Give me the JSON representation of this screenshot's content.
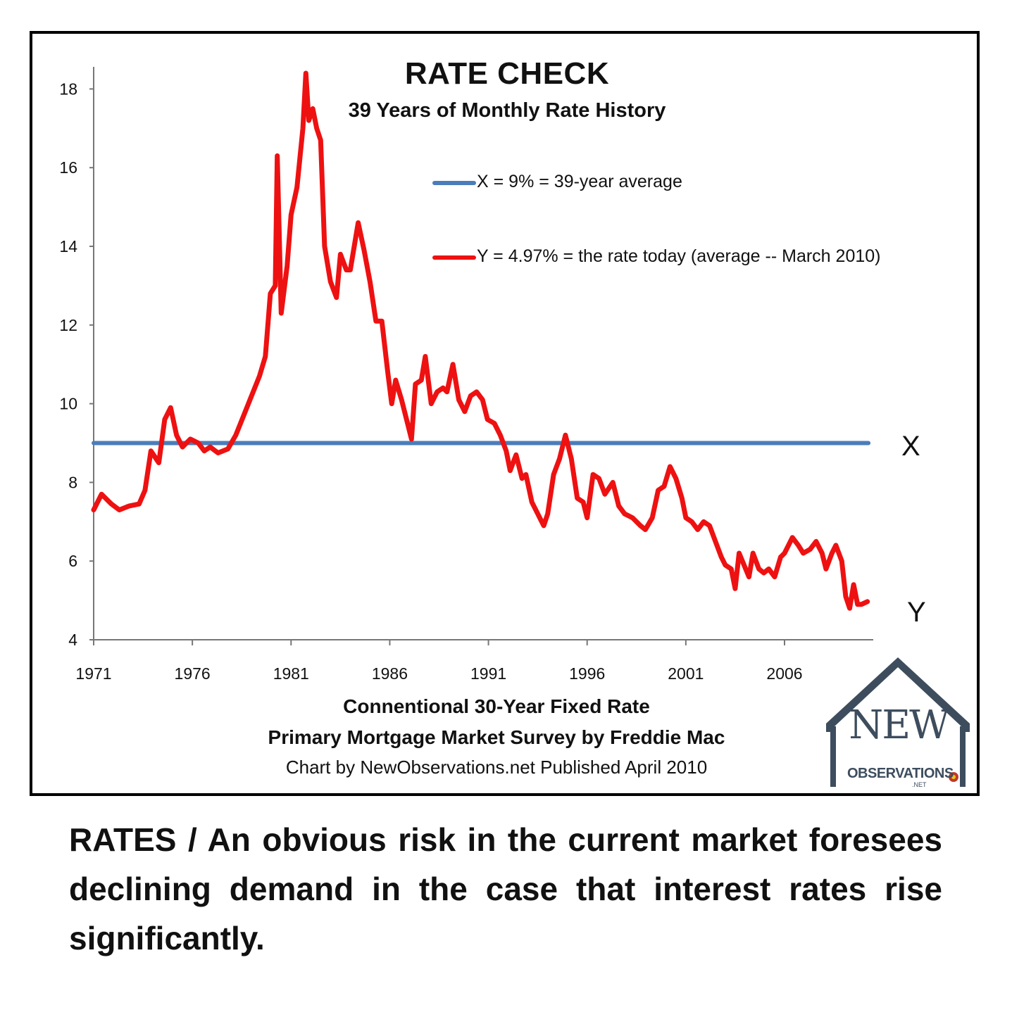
{
  "chart_data": {
    "type": "line",
    "title": "RATE CHECK",
    "subtitle": "39 Years of Monthly Rate History",
    "xlabel": "Connentional 30-Year Fixed Rate",
    "ylabel": "",
    "x_ticks": [
      "1971",
      "1976",
      "1981",
      "1986",
      "1991",
      "1996",
      "2001",
      "2006"
    ],
    "y_ticks": [
      "4",
      "6",
      "8",
      "10",
      "12",
      "14",
      "16",
      "18"
    ],
    "xlim": [
      1971,
      2010.5
    ],
    "ylim": [
      4,
      19
    ],
    "grid": false,
    "legend_position": "top-center",
    "series": [
      {
        "name": "X = 9% = 39-year average",
        "color": "#4a7dba",
        "points": [
          [
            1971,
            9
          ],
          [
            2010.25,
            9
          ]
        ]
      },
      {
        "name": "Y = 4.97% = the rate today (average -- March 2010)",
        "color": "#ee1111",
        "points": [
          [
            1971.0,
            7.3
          ],
          [
            1971.4,
            7.7
          ],
          [
            1971.9,
            7.45
          ],
          [
            1972.3,
            7.3
          ],
          [
            1972.8,
            7.4
          ],
          [
            1973.3,
            7.45
          ],
          [
            1973.6,
            7.8
          ],
          [
            1973.9,
            8.8
          ],
          [
            1974.3,
            8.5
          ],
          [
            1974.6,
            9.6
          ],
          [
            1974.9,
            9.9
          ],
          [
            1975.2,
            9.2
          ],
          [
            1975.5,
            8.9
          ],
          [
            1975.9,
            9.1
          ],
          [
            1976.3,
            9.0
          ],
          [
            1976.6,
            8.8
          ],
          [
            1976.9,
            8.9
          ],
          [
            1977.3,
            8.75
          ],
          [
            1977.8,
            8.85
          ],
          [
            1978.2,
            9.2
          ],
          [
            1978.6,
            9.7
          ],
          [
            1979.0,
            10.2
          ],
          [
            1979.4,
            10.7
          ],
          [
            1979.7,
            11.2
          ],
          [
            1979.95,
            12.8
          ],
          [
            1980.2,
            13.0
          ],
          [
            1980.3,
            16.3
          ],
          [
            1980.5,
            12.3
          ],
          [
            1980.8,
            13.5
          ],
          [
            1981.0,
            14.8
          ],
          [
            1981.3,
            15.5
          ],
          [
            1981.6,
            17.0
          ],
          [
            1981.75,
            18.4
          ],
          [
            1981.9,
            17.2
          ],
          [
            1982.1,
            17.5
          ],
          [
            1982.3,
            17.0
          ],
          [
            1982.5,
            16.7
          ],
          [
            1982.7,
            14.0
          ],
          [
            1983.0,
            13.1
          ],
          [
            1983.3,
            12.7
          ],
          [
            1983.5,
            13.8
          ],
          [
            1983.8,
            13.4
          ],
          [
            1984.0,
            13.4
          ],
          [
            1984.4,
            14.6
          ],
          [
            1984.7,
            13.9
          ],
          [
            1985.0,
            13.1
          ],
          [
            1985.3,
            12.1
          ],
          [
            1985.6,
            12.1
          ],
          [
            1985.9,
            10.8
          ],
          [
            1986.1,
            10.0
          ],
          [
            1986.3,
            10.6
          ],
          [
            1986.6,
            10.1
          ],
          [
            1986.9,
            9.5
          ],
          [
            1987.1,
            9.1
          ],
          [
            1987.3,
            10.5
          ],
          [
            1987.6,
            10.6
          ],
          [
            1987.8,
            11.2
          ],
          [
            1988.1,
            10.0
          ],
          [
            1988.4,
            10.3
          ],
          [
            1988.7,
            10.4
          ],
          [
            1988.9,
            10.3
          ],
          [
            1989.2,
            11.0
          ],
          [
            1989.5,
            10.1
          ],
          [
            1989.8,
            9.8
          ],
          [
            1990.1,
            10.2
          ],
          [
            1990.4,
            10.3
          ],
          [
            1990.7,
            10.1
          ],
          [
            1990.95,
            9.6
          ],
          [
            1991.3,
            9.5
          ],
          [
            1991.6,
            9.2
          ],
          [
            1991.9,
            8.8
          ],
          [
            1992.1,
            8.3
          ],
          [
            1992.4,
            8.7
          ],
          [
            1992.7,
            8.1
          ],
          [
            1992.9,
            8.2
          ],
          [
            1993.2,
            7.5
          ],
          [
            1993.5,
            7.2
          ],
          [
            1993.8,
            6.9
          ],
          [
            1994.0,
            7.2
          ],
          [
            1994.3,
            8.2
          ],
          [
            1994.6,
            8.6
          ],
          [
            1994.9,
            9.2
          ],
          [
            1995.2,
            8.6
          ],
          [
            1995.5,
            7.6
          ],
          [
            1995.8,
            7.5
          ],
          [
            1996.0,
            7.1
          ],
          [
            1996.3,
            8.2
          ],
          [
            1996.6,
            8.1
          ],
          [
            1996.9,
            7.7
          ],
          [
            1997.3,
            8.0
          ],
          [
            1997.6,
            7.4
          ],
          [
            1997.9,
            7.2
          ],
          [
            1998.3,
            7.1
          ],
          [
            1998.7,
            6.9
          ],
          [
            1998.95,
            6.8
          ],
          [
            1999.3,
            7.1
          ],
          [
            1999.6,
            7.8
          ],
          [
            1999.9,
            7.9
          ],
          [
            2000.2,
            8.4
          ],
          [
            2000.5,
            8.1
          ],
          [
            2000.8,
            7.6
          ],
          [
            2001.0,
            7.1
          ],
          [
            2001.3,
            7.0
          ],
          [
            2001.6,
            6.8
          ],
          [
            2001.9,
            7.0
          ],
          [
            2002.2,
            6.9
          ],
          [
            2002.5,
            6.5
          ],
          [
            2002.8,
            6.1
          ],
          [
            2003.0,
            5.9
          ],
          [
            2003.3,
            5.8
          ],
          [
            2003.5,
            5.3
          ],
          [
            2003.7,
            6.2
          ],
          [
            2003.95,
            5.9
          ],
          [
            2004.2,
            5.6
          ],
          [
            2004.4,
            6.2
          ],
          [
            2004.7,
            5.8
          ],
          [
            2004.95,
            5.7
          ],
          [
            2005.2,
            5.8
          ],
          [
            2005.5,
            5.6
          ],
          [
            2005.8,
            6.1
          ],
          [
            2006.0,
            6.2
          ],
          [
            2006.4,
            6.6
          ],
          [
            2006.7,
            6.4
          ],
          [
            2006.95,
            6.2
          ],
          [
            2007.3,
            6.3
          ],
          [
            2007.6,
            6.5
          ],
          [
            2007.9,
            6.2
          ],
          [
            2008.1,
            5.8
          ],
          [
            2008.4,
            6.2
          ],
          [
            2008.6,
            6.4
          ],
          [
            2008.9,
            6.0
          ],
          [
            2009.1,
            5.1
          ],
          [
            2009.3,
            4.8
          ],
          [
            2009.5,
            5.4
          ],
          [
            2009.7,
            4.9
          ],
          [
            2009.9,
            4.9
          ],
          [
            2010.2,
            4.97
          ]
        ]
      }
    ],
    "annotations": [
      "X",
      "Y"
    ]
  },
  "legend": {
    "avg_label": "X = 9% = 39-year average",
    "today_label": "Y = 4.97% = the rate today (average -- March 2010)"
  },
  "markers": {
    "x": "X",
    "y": "Y"
  },
  "footer": {
    "line1": "Connentional 30-Year Fixed Rate",
    "line2": "Primary Mortgage Market Survey by Freddie Mac",
    "line3": "Chart by NewObservations.net  Published April 2010"
  },
  "logo": {
    "word": "NEW",
    "name": "OBSERVATIONS",
    "tld": ".NET",
    "color": "#3d4d5e"
  },
  "caption": "RATES / An obvious risk in the current market foresees declining demand in the case that interest rates rise significantly."
}
